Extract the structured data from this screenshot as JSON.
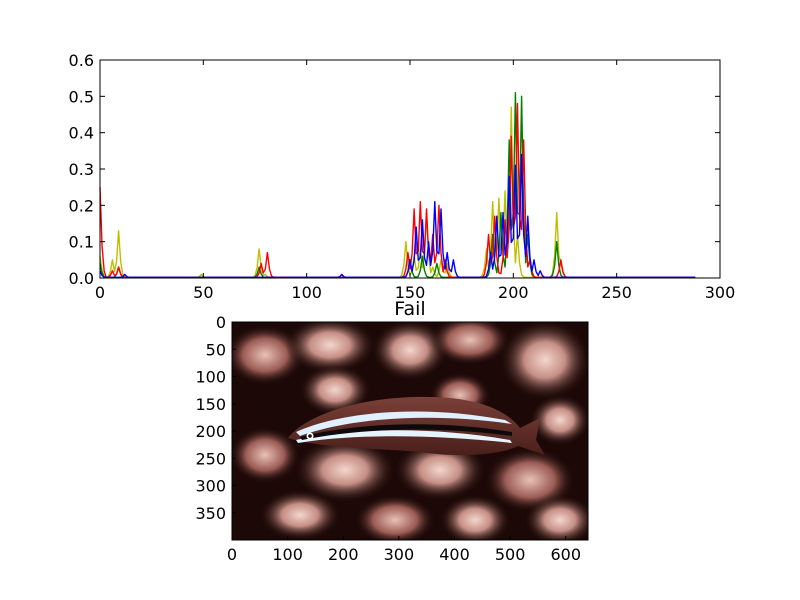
{
  "chart_data": [
    {
      "type": "line",
      "title": "",
      "xlabel": "",
      "ylabel": "",
      "xlim": [
        0,
        300
      ],
      "ylim": [
        0,
        0.6
      ],
      "xticks": [
        "0",
        "50",
        "100",
        "150",
        "200",
        "250",
        "300"
      ],
      "yticks": [
        "0.0",
        "0.1",
        "0.2",
        "0.3",
        "0.4",
        "0.5",
        "0.6"
      ],
      "grid": false,
      "legend": "none",
      "colors": {
        "b": "#0000ff",
        "g": "#008000",
        "r": "#ff0000",
        "y": "#bfbf00"
      },
      "series_style": "color histogram of the image below (blue, green, red, yellow channels)",
      "peaks": {
        "y": [
          [
            0,
            0.06
          ],
          [
            6,
            0.05
          ],
          [
            9,
            0.13
          ],
          [
            49,
            0.01
          ],
          [
            77,
            0.08
          ],
          [
            80,
            0.01
          ],
          [
            148,
            0.1
          ],
          [
            152,
            0.06
          ],
          [
            155,
            0.08
          ],
          [
            158,
            0.18
          ],
          [
            161,
            0.03
          ],
          [
            165,
            0.05
          ],
          [
            168,
            0.04
          ],
          [
            187,
            0.08
          ],
          [
            190,
            0.21
          ],
          [
            193,
            0.22
          ],
          [
            196,
            0.24
          ],
          [
            199,
            0.47
          ],
          [
            202,
            0.12
          ],
          [
            221,
            0.18
          ],
          [
            223,
            0.04
          ]
        ],
        "g": [
          [
            0,
            0.04
          ],
          [
            9,
            0.03
          ],
          [
            77,
            0.03
          ],
          [
            150,
            0.05
          ],
          [
            156,
            0.06
          ],
          [
            163,
            0.04
          ],
          [
            190,
            0.12
          ],
          [
            194,
            0.18
          ],
          [
            198,
            0.38
          ],
          [
            201,
            0.51
          ],
          [
            204,
            0.5
          ],
          [
            207,
            0.12
          ],
          [
            221,
            0.1
          ]
        ],
        "r": [
          [
            0,
            0.25
          ],
          [
            6,
            0.02
          ],
          [
            9,
            0.03
          ],
          [
            78,
            0.04
          ],
          [
            81,
            0.07
          ],
          [
            149,
            0.07
          ],
          [
            152,
            0.19
          ],
          [
            155,
            0.21
          ],
          [
            158,
            0.19
          ],
          [
            161,
            0.12
          ],
          [
            164,
            0.2
          ],
          [
            167,
            0.05
          ],
          [
            188,
            0.12
          ],
          [
            191,
            0.17
          ],
          [
            196,
            0.16
          ],
          [
            199,
            0.39
          ],
          [
            202,
            0.48
          ],
          [
            205,
            0.38
          ],
          [
            208,
            0.05
          ],
          [
            223,
            0.05
          ]
        ],
        "b": [
          [
            0,
            0.02
          ],
          [
            12,
            0.01
          ],
          [
            117,
            0.01
          ],
          [
            150,
            0.05
          ],
          [
            153,
            0.14
          ],
          [
            156,
            0.16
          ],
          [
            159,
            0.1
          ],
          [
            162,
            0.21
          ],
          [
            165,
            0.19
          ],
          [
            168,
            0.07
          ],
          [
            171,
            0.05
          ],
          [
            189,
            0.07
          ],
          [
            192,
            0.17
          ],
          [
            195,
            0.18
          ],
          [
            198,
            0.28
          ],
          [
            201,
            0.31
          ],
          [
            204,
            0.34
          ],
          [
            207,
            0.17
          ],
          [
            210,
            0.05
          ],
          [
            213,
            0.02
          ]
        ]
      }
    },
    {
      "type": "image",
      "title": "Fail",
      "xlim": [
        0,
        640
      ],
      "ylim": [
        400,
        0
      ],
      "xticks": [
        "0",
        "100",
        "200",
        "300",
        "400",
        "500",
        "600"
      ],
      "yticks": [
        "0",
        "50",
        "100",
        "150",
        "200",
        "250",
        "300",
        "350"
      ],
      "content": "underwater photo of a striped fish (blackline fangblenny) over pink coral"
    }
  ]
}
